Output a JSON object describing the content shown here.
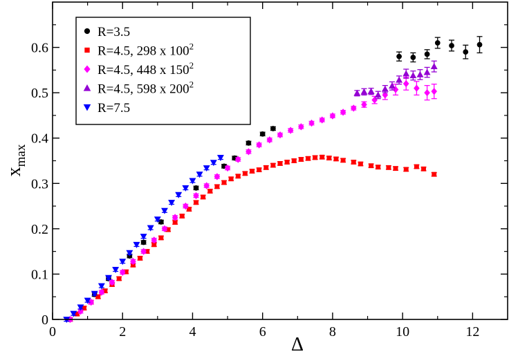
{
  "chart_data": {
    "type": "scatter",
    "title": "",
    "xlabel": "Δ",
    "ylabel_main": "x",
    "ylabel_sub": "max",
    "xlim": [
      0,
      13
    ],
    "ylim": [
      0,
      0.7
    ],
    "xticks": [
      0,
      2,
      4,
      6,
      8,
      10,
      12
    ],
    "yticks": [
      0,
      0.1,
      0.2,
      0.3,
      0.4,
      0.5,
      0.6
    ],
    "grid": false,
    "legend_position": "top-left",
    "series": [
      {
        "name": "R=3.5",
        "label_main": "R=3.5",
        "label_sup": "",
        "marker": "circle",
        "color": "#000000",
        "x": [
          0.5,
          1.2,
          1.6,
          2.2,
          2.6,
          3.1,
          4.1,
          4.9,
          5.2,
          5.6,
          6.0,
          6.3,
          9.9,
          10.3,
          10.7,
          11.0,
          11.4,
          11.8,
          12.2
        ],
        "y": [
          0.0,
          0.055,
          0.09,
          0.14,
          0.17,
          0.215,
          0.29,
          0.338,
          0.356,
          0.389,
          0.409,
          0.421,
          0.58,
          0.578,
          0.585,
          0.61,
          0.604,
          0.59,
          0.606
        ],
        "err": [
          0.004,
          0.004,
          0.004,
          0.004,
          0.004,
          0.004,
          0.004,
          0.004,
          0.004,
          0.004,
          0.004,
          0.004,
          0.01,
          0.01,
          0.01,
          0.012,
          0.012,
          0.015,
          0.018
        ]
      },
      {
        "name": "R=4.5, 298 x 100^2",
        "label_main": "R=4.5, 298 x 100",
        "label_sup": "2",
        "marker": "square",
        "color": "#ff0000",
        "x": [
          0.5,
          0.7,
          0.9,
          1.1,
          1.3,
          1.5,
          1.7,
          1.9,
          2.1,
          2.3,
          2.5,
          2.7,
          2.9,
          3.1,
          3.3,
          3.5,
          3.7,
          3.9,
          4.1,
          4.3,
          4.5,
          4.7,
          4.9,
          5.1,
          5.3,
          5.5,
          5.7,
          5.9,
          6.1,
          6.3,
          6.5,
          6.7,
          6.9,
          7.1,
          7.3,
          7.5,
          7.7,
          7.9,
          8.1,
          8.3,
          8.6,
          8.8,
          9.1,
          9.3,
          9.6,
          9.8,
          10.1,
          10.4,
          10.6,
          10.9
        ],
        "y": [
          0.0,
          0.012,
          0.025,
          0.038,
          0.05,
          0.063,
          0.077,
          0.09,
          0.105,
          0.12,
          0.135,
          0.15,
          0.165,
          0.18,
          0.198,
          0.214,
          0.228,
          0.243,
          0.258,
          0.27,
          0.283,
          0.293,
          0.302,
          0.31,
          0.316,
          0.322,
          0.327,
          0.33,
          0.335,
          0.34,
          0.344,
          0.347,
          0.35,
          0.353,
          0.355,
          0.357,
          0.358,
          0.356,
          0.354,
          0.351,
          0.347,
          0.343,
          0.339,
          0.336,
          0.335,
          0.333,
          0.331,
          0.337,
          0.332,
          0.32
        ],
        "err": [
          0.004,
          0.004,
          0.004,
          0.004,
          0.004,
          0.004,
          0.004,
          0.004,
          0.004,
          0.004,
          0.004,
          0.004,
          0.004,
          0.004,
          0.004,
          0.004,
          0.004,
          0.004,
          0.004,
          0.004,
          0.004,
          0.004,
          0.004,
          0.004,
          0.004,
          0.004,
          0.004,
          0.004,
          0.004,
          0.004,
          0.004,
          0.004,
          0.004,
          0.004,
          0.004,
          0.004,
          0.004,
          0.004,
          0.004,
          0.004,
          0.004,
          0.004,
          0.004,
          0.004,
          0.004,
          0.004,
          0.004,
          0.004,
          0.004,
          0.004
        ]
      },
      {
        "name": "R=4.5, 448 x 150^2",
        "label_main": "R=4.5, 448 x 150",
        "label_sup": "2",
        "marker": "diamond",
        "color": "#ff00ff",
        "x": [
          0.5,
          0.8,
          1.1,
          1.4,
          1.7,
          2.0,
          2.3,
          2.6,
          2.9,
          3.2,
          3.5,
          3.8,
          4.1,
          4.4,
          4.7,
          5.0,
          5.3,
          5.6,
          5.9,
          6.2,
          6.5,
          6.8,
          7.1,
          7.4,
          7.7,
          8.0,
          8.3,
          8.6,
          8.9,
          9.2,
          9.5,
          9.8,
          10.1,
          10.4,
          10.7,
          10.9
        ],
        "y": [
          0.0,
          0.018,
          0.038,
          0.06,
          0.082,
          0.104,
          0.128,
          0.15,
          0.175,
          0.2,
          0.225,
          0.25,
          0.273,
          0.295,
          0.315,
          0.334,
          0.353,
          0.37,
          0.385,
          0.396,
          0.407,
          0.417,
          0.425,
          0.433,
          0.44,
          0.449,
          0.457,
          0.466,
          0.474,
          0.484,
          0.495,
          0.507,
          0.52,
          0.51,
          0.5,
          0.503
        ],
        "err": [
          0.004,
          0.004,
          0.004,
          0.004,
          0.004,
          0.004,
          0.004,
          0.004,
          0.004,
          0.004,
          0.004,
          0.004,
          0.004,
          0.004,
          0.004,
          0.004,
          0.004,
          0.004,
          0.004,
          0.004,
          0.004,
          0.004,
          0.004,
          0.004,
          0.004,
          0.004,
          0.004,
          0.004,
          0.006,
          0.008,
          0.01,
          0.012,
          0.014,
          0.015,
          0.016,
          0.016
        ]
      },
      {
        "name": "R=4.5, 598 x 200^2",
        "label_main": "R=4.5, 598 x 200",
        "label_sup": "2",
        "marker": "triangle-up",
        "color": "#9400d3",
        "x": [
          8.7,
          8.9,
          9.1,
          9.3,
          9.5,
          9.7,
          9.9,
          10.1,
          10.3,
          10.5,
          10.7,
          10.9
        ],
        "y": [
          0.499,
          0.502,
          0.503,
          0.495,
          0.508,
          0.515,
          0.528,
          0.542,
          0.538,
          0.54,
          0.545,
          0.558
        ],
        "err": [
          0.006,
          0.007,
          0.007,
          0.008,
          0.008,
          0.009,
          0.009,
          0.01,
          0.01,
          0.011,
          0.011,
          0.012
        ]
      },
      {
        "name": "R=7.5",
        "label_main": "R=7.5",
        "label_sup": "",
        "marker": "triangle-down",
        "color": "#0000ff",
        "x": [
          0.4,
          0.6,
          0.8,
          1.0,
          1.2,
          1.4,
          1.6,
          1.8,
          2.0,
          2.2,
          2.4,
          2.6,
          2.8,
          3.0,
          3.2,
          3.4,
          3.6,
          3.8,
          4.0,
          4.2,
          4.4,
          4.6,
          4.8
        ],
        "y": [
          0.0,
          0.013,
          0.027,
          0.042,
          0.057,
          0.074,
          0.092,
          0.11,
          0.128,
          0.147,
          0.165,
          0.183,
          0.202,
          0.221,
          0.24,
          0.258,
          0.275,
          0.29,
          0.306,
          0.32,
          0.334,
          0.346,
          0.357
        ],
        "err": [
          0.004,
          0.004,
          0.004,
          0.004,
          0.004,
          0.004,
          0.004,
          0.004,
          0.004,
          0.004,
          0.004,
          0.004,
          0.004,
          0.004,
          0.004,
          0.004,
          0.004,
          0.004,
          0.004,
          0.004,
          0.004,
          0.004,
          0.004
        ]
      }
    ]
  }
}
